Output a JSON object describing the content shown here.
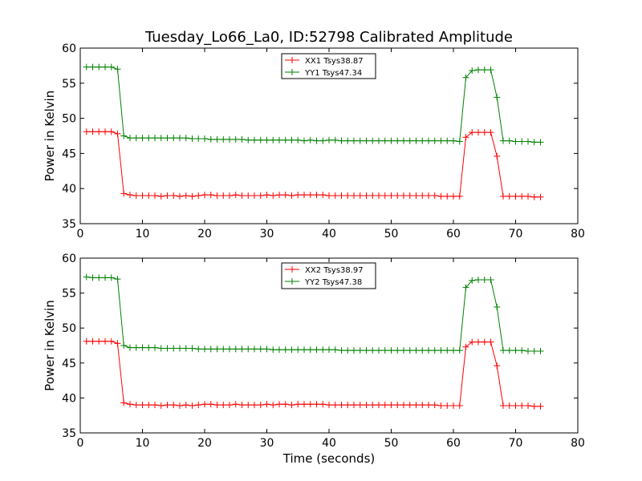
{
  "chart_data": [
    {
      "type": "line",
      "title": "Tuesday_Lo66_La0, ID:52798 Calibrated Amplitude",
      "xlabel": "",
      "ylabel": "Power in Kelvin",
      "xlim": [
        0,
        80
      ],
      "ylim": [
        35,
        60
      ],
      "xticks": [
        0,
        10,
        20,
        30,
        40,
        50,
        60,
        70,
        80
      ],
      "yticks": [
        35,
        40,
        45,
        50,
        55,
        60
      ],
      "grid": false,
      "legend_position": "top-center",
      "x": [
        1,
        2,
        3,
        4,
        5,
        6,
        7,
        8,
        9,
        10,
        11,
        12,
        13,
        14,
        15,
        16,
        17,
        18,
        19,
        20,
        21,
        22,
        23,
        24,
        25,
        26,
        27,
        28,
        29,
        30,
        31,
        32,
        33,
        34,
        35,
        36,
        37,
        38,
        39,
        40,
        41,
        42,
        43,
        44,
        45,
        46,
        47,
        48,
        49,
        50,
        51,
        52,
        53,
        54,
        55,
        56,
        57,
        58,
        59,
        60,
        61,
        62,
        63,
        64,
        65,
        66,
        67,
        68,
        69,
        70,
        71,
        72,
        73,
        74
      ],
      "series": [
        {
          "name": "XX1 Tsys38.87",
          "color": "#ff0000",
          "values": [
            48.1,
            48.1,
            48.1,
            48.1,
            48.1,
            47.8,
            39.3,
            39.1,
            39.0,
            39.0,
            39.0,
            39.0,
            38.9,
            39.0,
            39.0,
            38.9,
            39.0,
            38.9,
            39.0,
            39.1,
            39.1,
            39.0,
            39.0,
            39.0,
            39.1,
            39.0,
            39.0,
            39.0,
            39.0,
            39.1,
            39.0,
            39.1,
            39.1,
            39.0,
            39.1,
            39.1,
            39.1,
            39.1,
            39.1,
            39.0,
            39.0,
            39.0,
            39.0,
            39.0,
            39.0,
            39.0,
            39.0,
            39.0,
            39.0,
            39.0,
            39.0,
            39.0,
            39.0,
            39.0,
            39.0,
            39.0,
            39.0,
            38.9,
            38.9,
            38.9,
            38.9,
            47.3,
            48.0,
            48.0,
            48.0,
            48.0,
            44.6,
            38.9,
            38.9,
            38.9,
            38.9,
            38.9,
            38.8,
            38.8
          ]
        },
        {
          "name": "YY1 Tsys47.34",
          "color": "#008000",
          "values": [
            57.3,
            57.3,
            57.3,
            57.3,
            57.3,
            57.0,
            47.5,
            47.2,
            47.2,
            47.2,
            47.2,
            47.2,
            47.2,
            47.2,
            47.2,
            47.2,
            47.2,
            47.1,
            47.1,
            47.1,
            47.0,
            47.0,
            47.0,
            47.0,
            47.0,
            47.0,
            46.9,
            46.9,
            46.9,
            46.9,
            46.9,
            46.9,
            46.9,
            46.9,
            46.9,
            46.8,
            46.9,
            46.8,
            46.8,
            46.9,
            46.9,
            46.8,
            46.8,
            46.8,
            46.8,
            46.8,
            46.8,
            46.8,
            46.8,
            46.8,
            46.8,
            46.8,
            46.8,
            46.8,
            46.8,
            46.8,
            46.8,
            46.8,
            46.8,
            46.8,
            46.7,
            55.8,
            56.8,
            56.9,
            56.9,
            56.9,
            53.0,
            46.8,
            46.8,
            46.7,
            46.7,
            46.7,
            46.6,
            46.6
          ]
        }
      ]
    },
    {
      "type": "line",
      "title": "",
      "xlabel": "Time (seconds)",
      "ylabel": "Power in Kelvin",
      "xlim": [
        0,
        80
      ],
      "ylim": [
        35,
        60
      ],
      "xticks": [
        0,
        10,
        20,
        30,
        40,
        50,
        60,
        70,
        80
      ],
      "yticks": [
        35,
        40,
        45,
        50,
        55,
        60
      ],
      "grid": false,
      "legend_position": "top-center",
      "x": [
        1,
        2,
        3,
        4,
        5,
        6,
        7,
        8,
        9,
        10,
        11,
        12,
        13,
        14,
        15,
        16,
        17,
        18,
        19,
        20,
        21,
        22,
        23,
        24,
        25,
        26,
        27,
        28,
        29,
        30,
        31,
        32,
        33,
        34,
        35,
        36,
        37,
        38,
        39,
        40,
        41,
        42,
        43,
        44,
        45,
        46,
        47,
        48,
        49,
        50,
        51,
        52,
        53,
        54,
        55,
        56,
        57,
        58,
        59,
        60,
        61,
        62,
        63,
        64,
        65,
        66,
        67,
        68,
        69,
        70,
        71,
        72,
        73,
        74
      ],
      "series": [
        {
          "name": "XX2 Tsys38.97",
          "color": "#ff0000",
          "values": [
            48.1,
            48.1,
            48.1,
            48.1,
            48.1,
            47.8,
            39.3,
            39.1,
            39.0,
            39.0,
            39.0,
            39.0,
            38.9,
            39.0,
            39.0,
            38.9,
            39.0,
            38.9,
            39.0,
            39.1,
            39.1,
            39.0,
            39.0,
            39.0,
            39.1,
            39.0,
            39.0,
            39.0,
            39.0,
            39.1,
            39.0,
            39.1,
            39.1,
            39.0,
            39.1,
            39.1,
            39.1,
            39.1,
            39.1,
            39.0,
            39.0,
            39.0,
            39.0,
            39.0,
            39.0,
            39.0,
            39.0,
            39.0,
            39.0,
            39.0,
            39.0,
            39.0,
            39.0,
            39.0,
            39.0,
            39.0,
            39.0,
            38.9,
            38.9,
            38.9,
            38.9,
            47.3,
            48.0,
            48.0,
            48.0,
            48.0,
            44.6,
            38.9,
            38.9,
            38.9,
            38.9,
            38.9,
            38.8,
            38.8
          ]
        },
        {
          "name": "YY2 Tsys47.38",
          "color": "#008000",
          "values": [
            57.3,
            57.2,
            57.2,
            57.2,
            57.2,
            57.0,
            47.5,
            47.2,
            47.2,
            47.2,
            47.2,
            47.2,
            47.1,
            47.1,
            47.1,
            47.1,
            47.1,
            47.1,
            47.0,
            47.0,
            47.0,
            47.0,
            47.0,
            47.0,
            47.0,
            47.0,
            47.0,
            47.0,
            47.0,
            47.0,
            46.9,
            46.9,
            46.9,
            46.9,
            46.9,
            46.9,
            46.9,
            46.9,
            46.9,
            46.9,
            46.9,
            46.8,
            46.8,
            46.8,
            46.8,
            46.8,
            46.8,
            46.8,
            46.8,
            46.8,
            46.8,
            46.8,
            46.8,
            46.8,
            46.8,
            46.8,
            46.8,
            46.8,
            46.8,
            46.8,
            46.8,
            55.8,
            56.8,
            56.9,
            56.9,
            56.9,
            53.0,
            46.8,
            46.8,
            46.8,
            46.8,
            46.7,
            46.7,
            46.7
          ]
        }
      ]
    }
  ]
}
